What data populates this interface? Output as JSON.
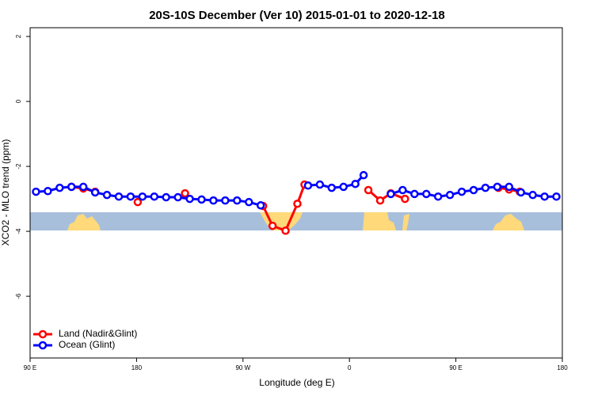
{
  "chart_data": {
    "type": "line",
    "title": "20S-10S December (Ver 10)   2015-01-01 to 2020-12-18",
    "x_label": "Longitude (deg E)",
    "y_label": "XCO2 - MLO trend (ppm)",
    "xlim": [
      90,
      540
    ],
    "ylim": [
      -7.9,
      2.27
    ],
    "xticks": [
      {
        "value": 90,
        "label": "90 E"
      },
      {
        "value": 180,
        "label": "180"
      },
      {
        "value": 270,
        "label": "90 W"
      },
      {
        "value": 360,
        "label": "0"
      },
      {
        "value": 450,
        "label": "90 E"
      },
      {
        "value": 540,
        "label": "180"
      }
    ],
    "yticks": [
      2,
      0,
      -2,
      -4,
      -6
    ],
    "legend": "bottom-left",
    "series": [
      {
        "name": "Land (Nadir&Glint)",
        "color": "#ff0000",
        "x": [
          125,
          135,
          145,
          null,
          181,
          null,
          221,
          null,
          287,
          295,
          306,
          316,
          322,
          null,
          376,
          386,
          395,
          407,
          null,
          486,
          495,
          504
        ],
        "values": [
          -2.63,
          -2.68,
          -2.78,
          null,
          -3.1,
          null,
          -2.83,
          null,
          -3.22,
          -3.83,
          -3.98,
          -3.15,
          -2.56,
          null,
          -2.73,
          -3.05,
          -2.83,
          -3.0,
          null,
          -2.66,
          -2.71,
          -2.78
        ]
      },
      {
        "name": "Ocean (Glint)",
        "color": "#0000ff",
        "x": [
          95,
          105,
          115,
          125,
          135,
          145,
          155,
          165,
          175,
          185,
          195,
          205,
          215,
          225,
          235,
          245,
          255,
          265,
          275,
          285,
          null,
          325,
          335,
          345,
          355,
          365,
          372,
          null,
          395,
          405,
          415,
          425,
          435,
          445,
          455,
          465,
          475,
          485,
          495,
          505,
          515,
          525,
          535
        ],
        "values": [
          -2.78,
          -2.76,
          -2.66,
          -2.63,
          -2.63,
          -2.8,
          -2.88,
          -2.93,
          -2.93,
          -2.93,
          -2.93,
          -2.95,
          -2.95,
          -3.0,
          -3.02,
          -3.05,
          -3.05,
          -3.05,
          -3.1,
          -3.2,
          null,
          -2.59,
          -2.56,
          -2.66,
          -2.63,
          -2.54,
          -2.27,
          null,
          -2.85,
          -2.73,
          -2.85,
          -2.85,
          -2.93,
          -2.88,
          -2.78,
          -2.73,
          -2.66,
          -2.63,
          -2.63,
          -2.8,
          -2.88,
          -2.93,
          -2.93
        ]
      }
    ]
  }
}
